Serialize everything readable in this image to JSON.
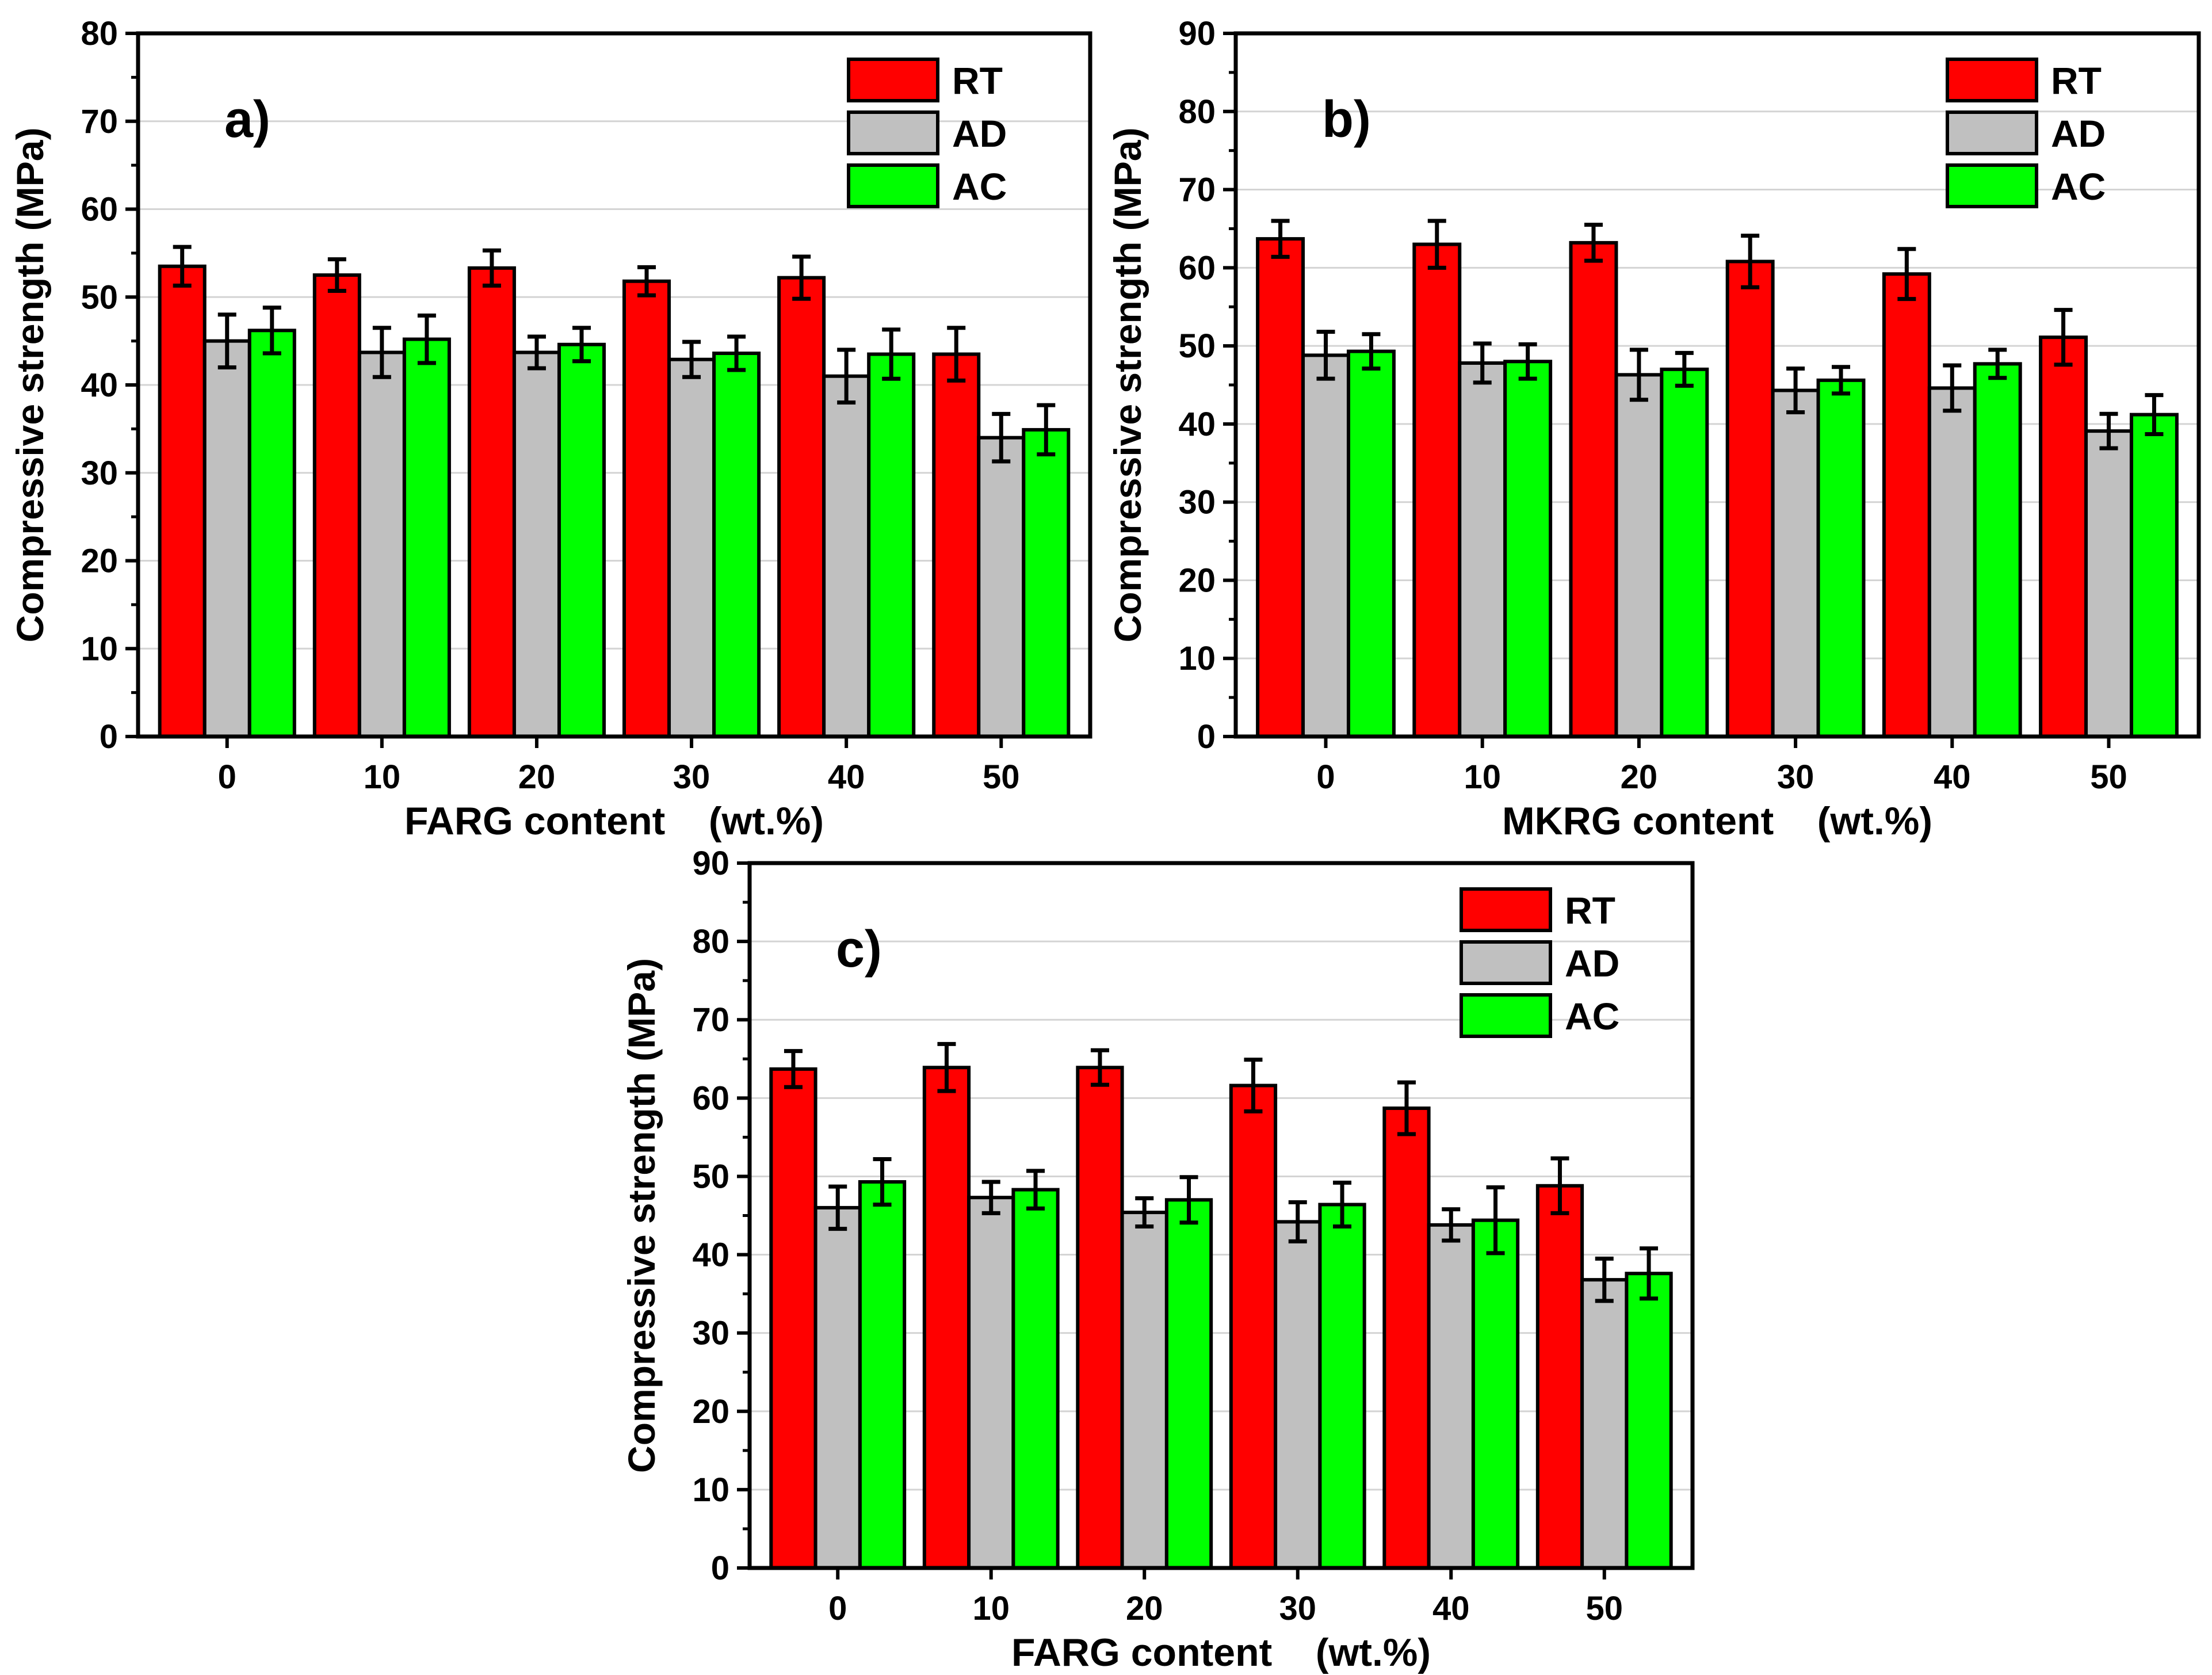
{
  "legend": {
    "series": [
      {
        "name": "RT",
        "color": "#ff0000"
      },
      {
        "name": "AD",
        "color": "#c0c0c0"
      },
      {
        "name": "AC",
        "color": "#00ff00"
      }
    ]
  },
  "chart_data": [
    {
      "type": "bar",
      "panel_label": "a)",
      "xlabel": "FARG content    (wt.%)",
      "ylabel": "Compressive strength (MPa)",
      "categories": [
        "0",
        "10",
        "20",
        "30",
        "40",
        "50"
      ],
      "ylim": [
        0,
        80
      ],
      "yticks": [
        0,
        10,
        20,
        30,
        40,
        50,
        60,
        70,
        80
      ],
      "grid": true,
      "legend_position": "top-right",
      "series": [
        {
          "name": "RT",
          "values": [
            53.5,
            52.5,
            53.3,
            51.8,
            52.2,
            43.5
          ],
          "errors": [
            2.2,
            1.8,
            2.0,
            1.6,
            2.4,
            3.0
          ]
        },
        {
          "name": "AD",
          "values": [
            45.0,
            43.7,
            43.7,
            42.9,
            41.0,
            34.0
          ],
          "errors": [
            3.0,
            2.8,
            1.8,
            2.0,
            3.0,
            2.7
          ]
        },
        {
          "name": "AC",
          "values": [
            46.2,
            45.2,
            44.6,
            43.6,
            43.5,
            34.9
          ],
          "errors": [
            2.6,
            2.7,
            1.9,
            1.9,
            2.8,
            2.8
          ]
        }
      ]
    },
    {
      "type": "bar",
      "panel_label": "b)",
      "xlabel": "MKRG content    (wt.%)",
      "ylabel": "Compressive strength (MPa)",
      "categories": [
        "0",
        "10",
        "20",
        "30",
        "40",
        "50"
      ],
      "ylim": [
        0,
        90
      ],
      "yticks": [
        0,
        10,
        20,
        30,
        40,
        50,
        60,
        70,
        80,
        90
      ],
      "grid": true,
      "legend_position": "top-right",
      "series": [
        {
          "name": "RT",
          "values": [
            63.7,
            63.0,
            63.2,
            60.8,
            59.2,
            51.1
          ],
          "errors": [
            2.3,
            3.0,
            2.3,
            3.3,
            3.2,
            3.5
          ]
        },
        {
          "name": "AD",
          "values": [
            48.8,
            47.8,
            46.3,
            44.3,
            44.6,
            39.1
          ],
          "errors": [
            3.0,
            2.5,
            3.2,
            2.8,
            2.9,
            2.2
          ]
        },
        {
          "name": "AC",
          "values": [
            49.3,
            48.0,
            47.0,
            45.6,
            47.7,
            41.2
          ],
          "errors": [
            2.2,
            2.2,
            2.1,
            1.7,
            1.8,
            2.5
          ]
        }
      ]
    },
    {
      "type": "bar",
      "panel_label": "c)",
      "xlabel": "FARG content    (wt.%)",
      "ylabel": "Compressive strength (MPa)",
      "categories": [
        "0",
        "10",
        "20",
        "30",
        "40",
        "50"
      ],
      "ylim": [
        0,
        90
      ],
      "yticks": [
        0,
        10,
        20,
        30,
        40,
        50,
        60,
        70,
        80,
        90
      ],
      "grid": true,
      "legend_position": "top-right",
      "series": [
        {
          "name": "RT",
          "values": [
            63.7,
            63.9,
            63.9,
            61.6,
            58.7,
            48.8
          ],
          "errors": [
            2.3,
            3.0,
            2.2,
            3.3,
            3.3,
            3.5
          ]
        },
        {
          "name": "AD",
          "values": [
            46.0,
            47.3,
            45.4,
            44.2,
            43.8,
            36.8
          ],
          "errors": [
            2.7,
            2.0,
            1.8,
            2.5,
            2.0,
            2.7
          ]
        },
        {
          "name": "AC",
          "values": [
            49.3,
            48.3,
            47.0,
            46.4,
            44.4,
            37.6
          ],
          "errors": [
            2.9,
            2.4,
            2.9,
            2.8,
            4.2,
            3.2
          ]
        }
      ]
    }
  ]
}
